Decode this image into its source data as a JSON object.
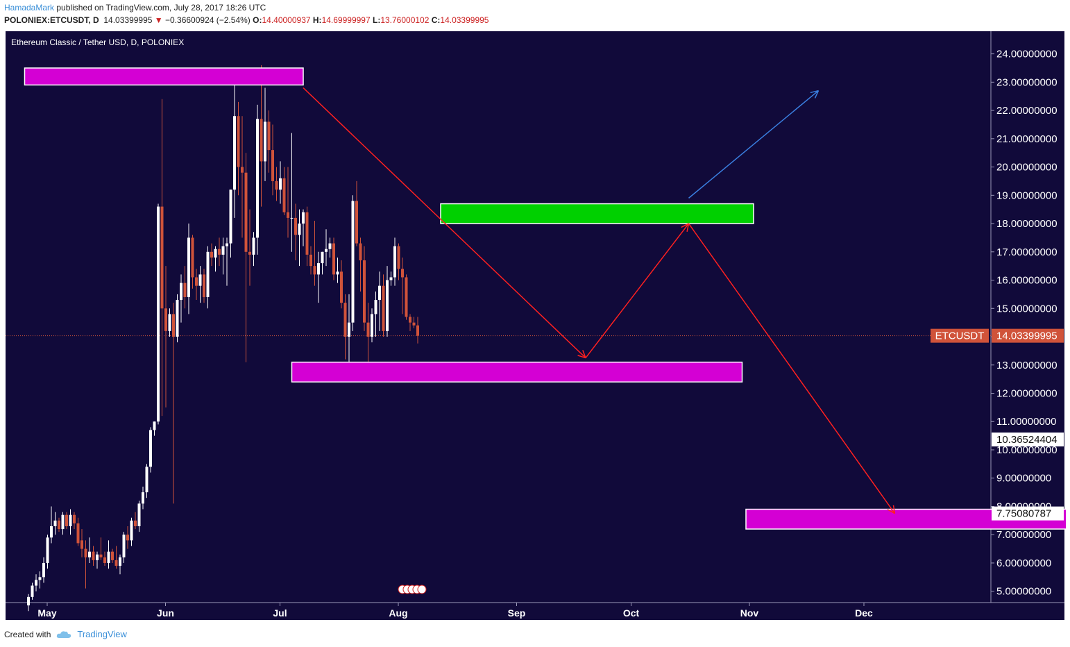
{
  "header": {
    "user": "HamadaMark",
    "published": "published on TradingView.com, July 28, 2017 18:26 UTC",
    "symbol": "POLONIEX:ETCUSDT, D",
    "last": "14.03399995",
    "change": "−0.36600924 (−2.54%)",
    "o_label": "O:",
    "o": "14.40000937",
    "h_label": "H:",
    "h": "14.69999997",
    "l_label": "L:",
    "l": "13.76000102",
    "c_label": "C:",
    "c": "14.03399995"
  },
  "footer": {
    "created_with": "Created with",
    "brand": "TradingView"
  },
  "colors": {
    "background": "#110a3a",
    "up": "#ffffff",
    "down": "#d0533a",
    "zone": "#d400d4",
    "green_zone": "#00d000",
    "red_arrow": "#ff2020",
    "blue_arrow": "#3a7fe0"
  },
  "chart_data": {
    "type": "candlestick",
    "title": "Ethereum Classic / Tether USD, D, POLONIEX",
    "ylim": [
      4.6,
      24.8
    ],
    "y_ticks": [
      "5.00000000",
      "6.00000000",
      "7.00000000",
      "8.00000000",
      "9.00000000",
      "10.00000000",
      "11.00000000",
      "12.00000000",
      "13.00000000",
      "14.00000000",
      "15.00000000",
      "16.00000000",
      "17.00000000",
      "18.00000000",
      "19.00000000",
      "20.00000000",
      "21.00000000",
      "22.00000000",
      "23.00000000",
      "24.00000000"
    ],
    "x_ticks": [
      {
        "label": "May",
        "day": 0
      },
      {
        "label": "Jun",
        "day": 31
      },
      {
        "label": "Jul",
        "day": 61
      },
      {
        "label": "Aug",
        "day": 92
      },
      {
        "label": "Sep",
        "day": 123
      },
      {
        "label": "Oct",
        "day": 153
      },
      {
        "label": "Nov",
        "day": 184
      },
      {
        "label": "Dec",
        "day": 214
      }
    ],
    "price_labels": [
      {
        "text": "ETCUSDT",
        "value": 14.03399995,
        "style": "symbol"
      },
      {
        "text": "14.03399995",
        "value": 14.03399995,
        "style": "last"
      },
      {
        "text": "10.36524404",
        "value": 10.36524404,
        "style": "plain"
      },
      {
        "text": "7.75080787",
        "value": 7.75080787,
        "style": "plain"
      }
    ],
    "candles": [
      [
        4.5,
        4.9,
        4.3,
        4.8
      ],
      [
        4.8,
        5.3,
        4.7,
        5.2
      ],
      [
        5.2,
        5.6,
        5.0,
        5.4
      ],
      [
        5.4,
        5.7,
        5.1,
        5.5
      ],
      [
        5.5,
        6.2,
        5.3,
        6.0
      ],
      [
        6.0,
        7.0,
        5.8,
        6.9
      ],
      [
        6.9,
        8.0,
        6.7,
        7.3
      ],
      [
        7.3,
        7.8,
        7.0,
        7.5
      ],
      [
        7.5,
        7.6,
        7.1,
        7.2
      ],
      [
        7.2,
        7.8,
        7.0,
        7.7
      ],
      [
        7.7,
        7.8,
        7.2,
        7.3
      ],
      [
        7.3,
        7.9,
        7.0,
        7.7
      ],
      [
        7.7,
        7.8,
        7.2,
        7.4
      ],
      [
        7.4,
        7.6,
        6.6,
        6.7
      ],
      [
        6.8,
        7.2,
        6.2,
        6.5
      ],
      [
        6.5,
        6.8,
        5.1,
        6.2
      ],
      [
        6.2,
        6.9,
        6.0,
        6.4
      ],
      [
        6.4,
        6.6,
        5.9,
        6.1
      ],
      [
        6.1,
        6.4,
        5.8,
        6.3
      ],
      [
        6.3,
        6.9,
        6.1,
        6.2
      ],
      [
        6.2,
        6.4,
        5.9,
        6.0
      ],
      [
        6.0,
        6.8,
        5.8,
        6.4
      ],
      [
        6.4,
        6.5,
        6.0,
        6.1
      ],
      [
        6.1,
        6.6,
        5.8,
        5.9
      ],
      [
        5.9,
        6.3,
        5.6,
        6.2
      ],
      [
        6.2,
        7.1,
        6.0,
        7.0
      ],
      [
        7.0,
        7.3,
        6.5,
        6.8
      ],
      [
        6.8,
        7.6,
        6.6,
        7.5
      ],
      [
        7.5,
        7.8,
        7.2,
        7.3
      ],
      [
        7.3,
        8.2,
        7.1,
        8.1
      ],
      [
        8.1,
        8.7,
        7.9,
        8.5
      ],
      [
        8.5,
        9.5,
        8.3,
        9.4
      ],
      [
        9.4,
        10.8,
        9.2,
        10.7
      ],
      [
        10.7,
        11.0,
        10.5,
        11.0
      ],
      [
        11.0,
        18.7,
        10.9,
        18.6
      ],
      [
        18.6,
        22.4,
        11.2,
        15.0
      ],
      [
        15.0,
        16.5,
        11.5,
        14.2
      ],
      [
        14.2,
        15.0,
        14.0,
        14.8
      ],
      [
        14.8,
        15.2,
        8.1,
        14.0
      ],
      [
        14.0,
        15.5,
        13.8,
        15.3
      ],
      [
        15.3,
        16.2,
        14.5,
        15.9
      ],
      [
        15.9,
        16.5,
        15.0,
        15.4
      ],
      [
        15.4,
        18.0,
        14.8,
        17.5
      ],
      [
        17.5,
        17.6,
        15.7,
        16.1
      ],
      [
        16.1,
        16.4,
        15.3,
        15.8
      ],
      [
        15.8,
        16.5,
        15.2,
        16.2
      ],
      [
        16.2,
        16.4,
        15.2,
        15.4
      ],
      [
        15.4,
        17.2,
        15.0,
        17.0
      ],
      [
        17.0,
        17.3,
        16.5,
        16.8
      ],
      [
        16.8,
        17.2,
        16.3,
        17.1
      ],
      [
        17.1,
        17.5,
        16.5,
        16.9
      ],
      [
        16.9,
        17.5,
        16.2,
        17.2
      ],
      [
        17.2,
        17.5,
        15.8,
        17.3
      ],
      [
        17.3,
        19.2,
        16.8,
        19.2
      ],
      [
        19.2,
        22.9,
        18.2,
        21.8
      ],
      [
        21.8,
        22.3,
        19.0,
        20.0
      ],
      [
        20.0,
        21.8,
        17.5,
        19.8
      ],
      [
        19.8,
        20.5,
        13.1,
        17.0
      ],
      [
        17.0,
        18.5,
        15.8,
        16.9
      ],
      [
        16.9,
        17.7,
        16.5,
        17.5
      ],
      [
        17.5,
        22.2,
        16.9,
        21.7
      ],
      [
        21.7,
        23.6,
        18.6,
        20.2
      ],
      [
        20.2,
        22.8,
        19.5,
        21.6
      ],
      [
        21.6,
        22.0,
        19.8,
        20.6
      ],
      [
        20.6,
        21.5,
        19.0,
        19.5
      ],
      [
        19.5,
        20.0,
        18.8,
        19.2
      ],
      [
        19.2,
        20.2,
        18.7,
        19.6
      ],
      [
        19.6,
        20.0,
        18.3,
        18.4
      ],
      [
        18.4,
        20.0,
        17.5,
        18.2
      ],
      [
        18.2,
        21.2,
        17.0,
        18.2
      ],
      [
        18.2,
        18.7,
        16.7,
        17.6
      ],
      [
        17.6,
        18.5,
        16.5,
        18.0
      ],
      [
        18.0,
        18.5,
        17.2,
        18.4
      ],
      [
        18.4,
        18.6,
        16.5,
        16.9
      ],
      [
        16.9,
        17.2,
        16.2,
        16.5
      ],
      [
        16.5,
        18.1,
        15.8,
        16.2
      ],
      [
        16.2,
        17.0,
        15.2,
        16.6
      ],
      [
        16.6,
        17.0,
        16.2,
        17.0
      ],
      [
        17.0,
        17.8,
        16.5,
        17.1
      ],
      [
        17.1,
        17.5,
        16.8,
        17.3
      ],
      [
        17.3,
        17.5,
        16.0,
        16.2
      ],
      [
        16.2,
        16.8,
        15.9,
        16.3
      ],
      [
        16.3,
        16.7,
        15.0,
        15.2
      ],
      [
        15.2,
        15.5,
        13.2,
        14.0
      ],
      [
        14.0,
        15.5,
        13.0,
        14.5
      ],
      [
        14.5,
        19.0,
        14.2,
        18.8
      ],
      [
        18.8,
        19.5,
        17.2,
        17.3
      ],
      [
        17.3,
        17.5,
        15.6,
        16.7
      ],
      [
        16.7,
        17.2,
        14.2,
        14.5
      ],
      [
        14.5,
        15.2,
        13.0,
        14.0
      ],
      [
        14.0,
        15.0,
        13.8,
        14.8
      ],
      [
        14.8,
        15.6,
        14.0,
        15.3
      ],
      [
        15.3,
        16.3,
        14.2,
        15.8
      ],
      [
        15.8,
        16.2,
        14.0,
        14.2
      ],
      [
        14.2,
        16.5,
        14.0,
        16.0
      ],
      [
        16.0,
        16.3,
        15.8,
        16.1
      ],
      [
        16.1,
        17.5,
        15.8,
        17.2
      ],
      [
        17.2,
        17.3,
        16.0,
        16.4
      ],
      [
        16.4,
        16.8,
        14.8,
        16.1
      ],
      [
        16.1,
        16.2,
        14.6,
        14.7
      ],
      [
        14.7,
        14.8,
        14.2,
        14.5
      ],
      [
        14.5,
        14.7,
        14.3,
        14.4
      ],
      [
        14.4,
        14.7,
        13.76,
        14.034
      ]
    ],
    "drawings": {
      "zones": [
        {
          "day_from": -1,
          "day_to": 72,
          "low": 22.9,
          "high": 23.5,
          "color": "#d400d4"
        },
        {
          "day_from": 108,
          "day_to": 190,
          "low": 18.0,
          "high": 18.7,
          "color": "#00d000"
        },
        {
          "day_from": 69,
          "day_to": 187,
          "low": 12.4,
          "high": 13.1,
          "color": "#d400d4"
        },
        {
          "day_from": 188,
          "day_to": 297,
          "low": 7.2,
          "high": 7.9,
          "color": "#d400d4"
        }
      ],
      "arrows": [
        {
          "from": [
            72,
            22.8
          ],
          "to": [
            146,
            13.25
          ],
          "color": "#ff2020"
        },
        {
          "from": [
            146,
            13.25
          ],
          "to": [
            173,
            18.0
          ],
          "color": "#ff2020"
        },
        {
          "from": [
            173,
            18.0
          ],
          "to": [
            227,
            7.75
          ],
          "color": "#ff2020"
        },
        {
          "from": [
            173,
            18.9
          ],
          "to": [
            207,
            22.7
          ],
          "color": "#3a7fe0"
        }
      ]
    }
  }
}
